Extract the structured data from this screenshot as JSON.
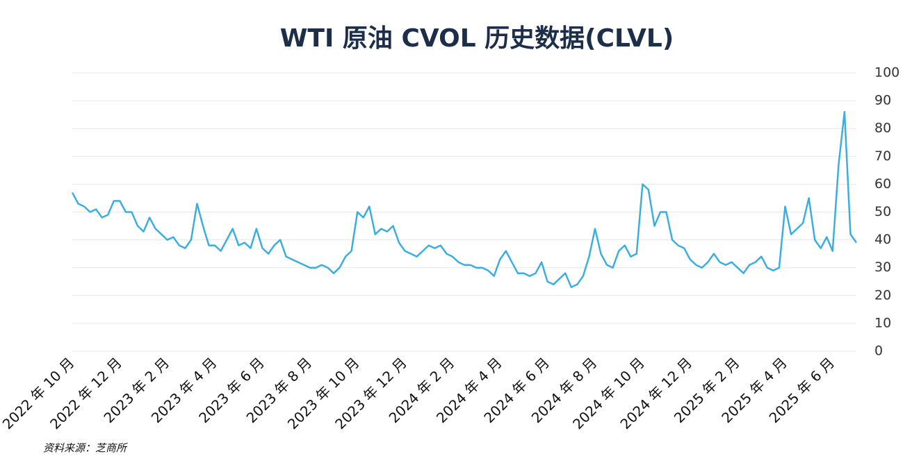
{
  "chart_data": {
    "type": "line",
    "title": "WTI 原油 CVOL 历史数据(CLVL)",
    "source": "资料来源：芝商所",
    "categories": [
      "2022 年 10 月",
      null,
      null,
      null,
      null,
      null,
      null,
      null,
      "2022 年 12 月",
      null,
      null,
      null,
      null,
      null,
      null,
      null,
      "2023 年 2 月",
      null,
      null,
      null,
      null,
      null,
      null,
      null,
      "2023 年 4 月",
      null,
      null,
      null,
      null,
      null,
      null,
      null,
      "2023 年 6 月",
      null,
      null,
      null,
      null,
      null,
      null,
      null,
      "2023 年 8 月",
      null,
      null,
      null,
      null,
      null,
      null,
      null,
      "2023 年 10 月",
      null,
      null,
      null,
      null,
      null,
      null,
      null,
      "2023 年 12 月",
      null,
      null,
      null,
      null,
      null,
      null,
      null,
      "2024 年 2 月",
      null,
      null,
      null,
      null,
      null,
      null,
      null,
      "2024 年 4 月",
      null,
      null,
      null,
      null,
      null,
      null,
      null,
      "2024 年 6 月",
      null,
      null,
      null,
      null,
      null,
      null,
      null,
      "2024 年 8 月",
      null,
      null,
      null,
      null,
      null,
      null,
      null,
      "2024 年 10 月",
      null,
      null,
      null,
      null,
      null,
      null,
      null,
      "2024 年 12 月",
      null,
      null,
      null,
      null,
      null,
      null,
      null,
      "2025 年 2 月",
      null,
      null,
      null,
      null,
      null,
      null,
      null,
      "2025 年 4 月",
      null,
      null,
      null,
      null,
      null,
      null,
      null,
      "2025 年 6 月",
      null,
      null,
      null,
      null
    ],
    "values": [
      57,
      53,
      52,
      50,
      51,
      48,
      49,
      54,
      54,
      50,
      50,
      45,
      43,
      48,
      44,
      42,
      40,
      41,
      38,
      37,
      40,
      53,
      45,
      38,
      38,
      36,
      40,
      44,
      38,
      39,
      37,
      44,
      37,
      35,
      38,
      40,
      34,
      33,
      32,
      31,
      30,
      30,
      31,
      30,
      28,
      30,
      34,
      36,
      50,
      48,
      52,
      42,
      44,
      43,
      45,
      39,
      36,
      35,
      34,
      36,
      38,
      37,
      38,
      35,
      34,
      32,
      31,
      31,
      30,
      30,
      29,
      27,
      33,
      36,
      32,
      28,
      28,
      27,
      28,
      32,
      25,
      24,
      26,
      28,
      23,
      24,
      27,
      34,
      44,
      35,
      31,
      30,
      36,
      38,
      34,
      35,
      60,
      58,
      45,
      50,
      50,
      40,
      38,
      37,
      33,
      31,
      30,
      32,
      35,
      32,
      31,
      32,
      30,
      28,
      31,
      32,
      34,
      30,
      29,
      30,
      52,
      42,
      44,
      46,
      55,
      40,
      37,
      41,
      36,
      67,
      86,
      42,
      39
    ],
    "color": "#3aaee0",
    "ylim": [
      0,
      100
    ],
    "yticks": [
      0,
      10,
      20,
      30,
      40,
      50,
      60,
      70,
      80,
      90,
      100
    ],
    "grid": true
  }
}
